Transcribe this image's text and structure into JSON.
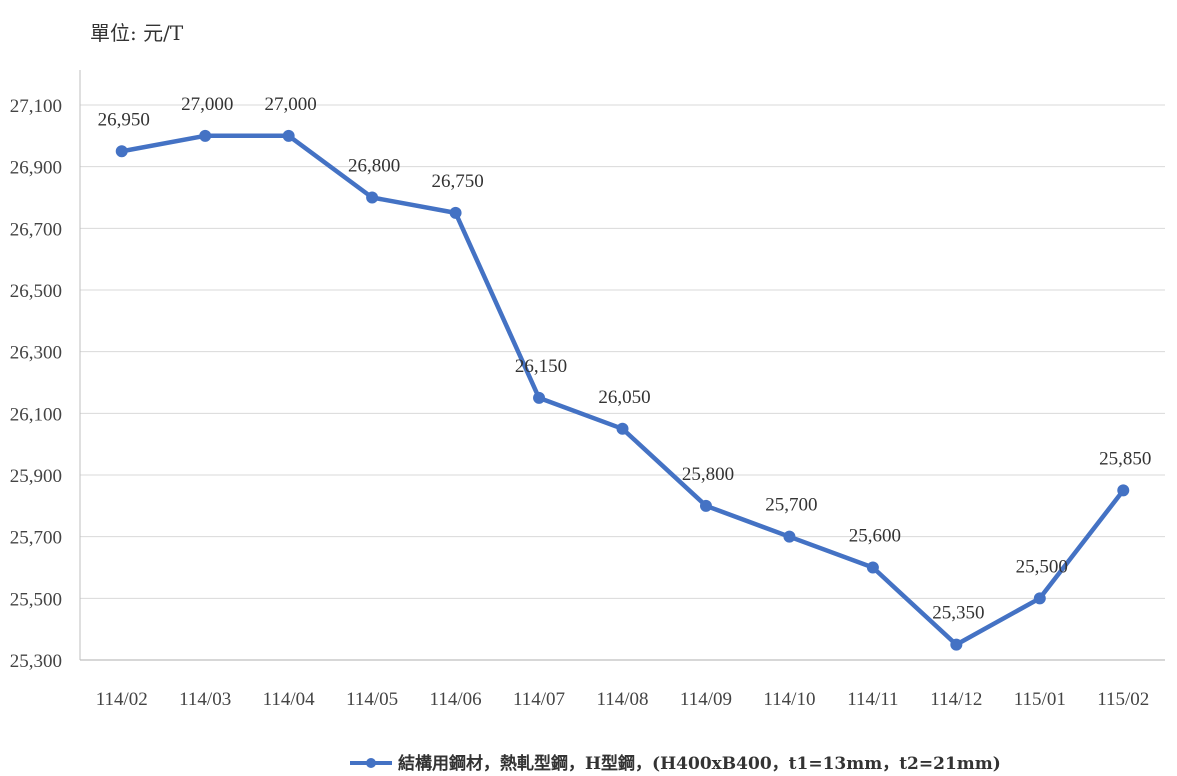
{
  "chart_data": {
    "type": "line",
    "unit_label": "單位: 元/T",
    "categories": [
      "114/02",
      "114/03",
      "114/04",
      "114/05",
      "114/06",
      "114/07",
      "114/08",
      "114/09",
      "114/10",
      "114/11",
      "114/12",
      "115/01",
      "115/02"
    ],
    "series": [
      {
        "name": "結構用鋼材，熱軋型鋼，H型鋼，(H400xB400，t1=13mm，t2=21mm)",
        "values": [
          26950,
          27000,
          27000,
          26800,
          26750,
          26150,
          26050,
          25800,
          25700,
          25600,
          25350,
          25500,
          25850
        ],
        "color": "#4472C4"
      }
    ],
    "ylim": [
      25300,
      27100
    ],
    "y_ticks": [
      25300,
      25500,
      25700,
      25900,
      26100,
      26300,
      26500,
      26700,
      26900,
      27100
    ],
    "y_tick_labels": [
      "25,300",
      "25,500",
      "25,700",
      "25,900",
      "26,100",
      "26,300",
      "26,500",
      "26,700",
      "26,900",
      "27,100"
    ],
    "data_labels": [
      "26,950",
      "27,000",
      "27,000",
      "26,800",
      "26,750",
      "26,150",
      "26,050",
      "25,800",
      "25,700",
      "25,600",
      "25,350",
      "25,500",
      "25,850"
    ],
    "grid": true,
    "legend_position": "bottom",
    "gridline_color": "#D9D9D9"
  }
}
